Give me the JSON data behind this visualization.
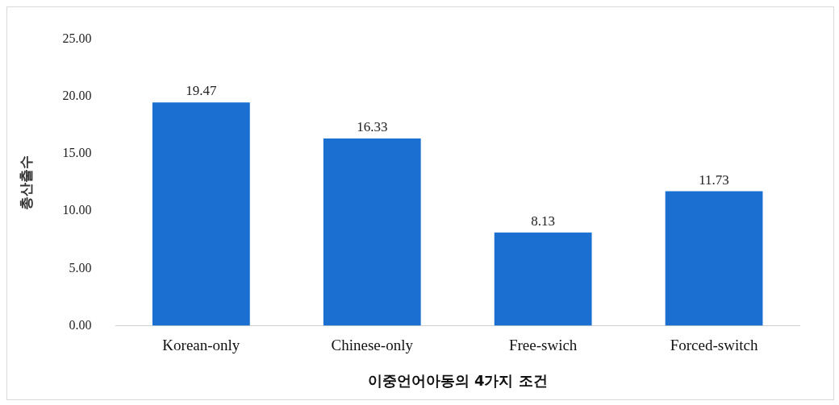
{
  "chart_data": {
    "type": "bar",
    "xlabel": "이중언어아동의 4가지 조건",
    "ylabel": "총산출수",
    "categories": [
      "Korean-only",
      "Chinese-only",
      "Free-swich",
      "Forced-switch"
    ],
    "values": [
      19.47,
      16.33,
      8.13,
      11.73
    ],
    "color": "#1a6fd0",
    "ylim": [
      0,
      25
    ],
    "yticks": [
      {
        "value": 0,
        "label": "0.00"
      },
      {
        "value": 5,
        "label": "5.00"
      },
      {
        "value": 10,
        "label": "10.00"
      },
      {
        "value": 15,
        "label": "15.00"
      },
      {
        "value": 20,
        "label": "20.00"
      },
      {
        "value": 25,
        "label": "25.00"
      }
    ],
    "data_labels": true,
    "grid": false,
    "legend": false
  }
}
